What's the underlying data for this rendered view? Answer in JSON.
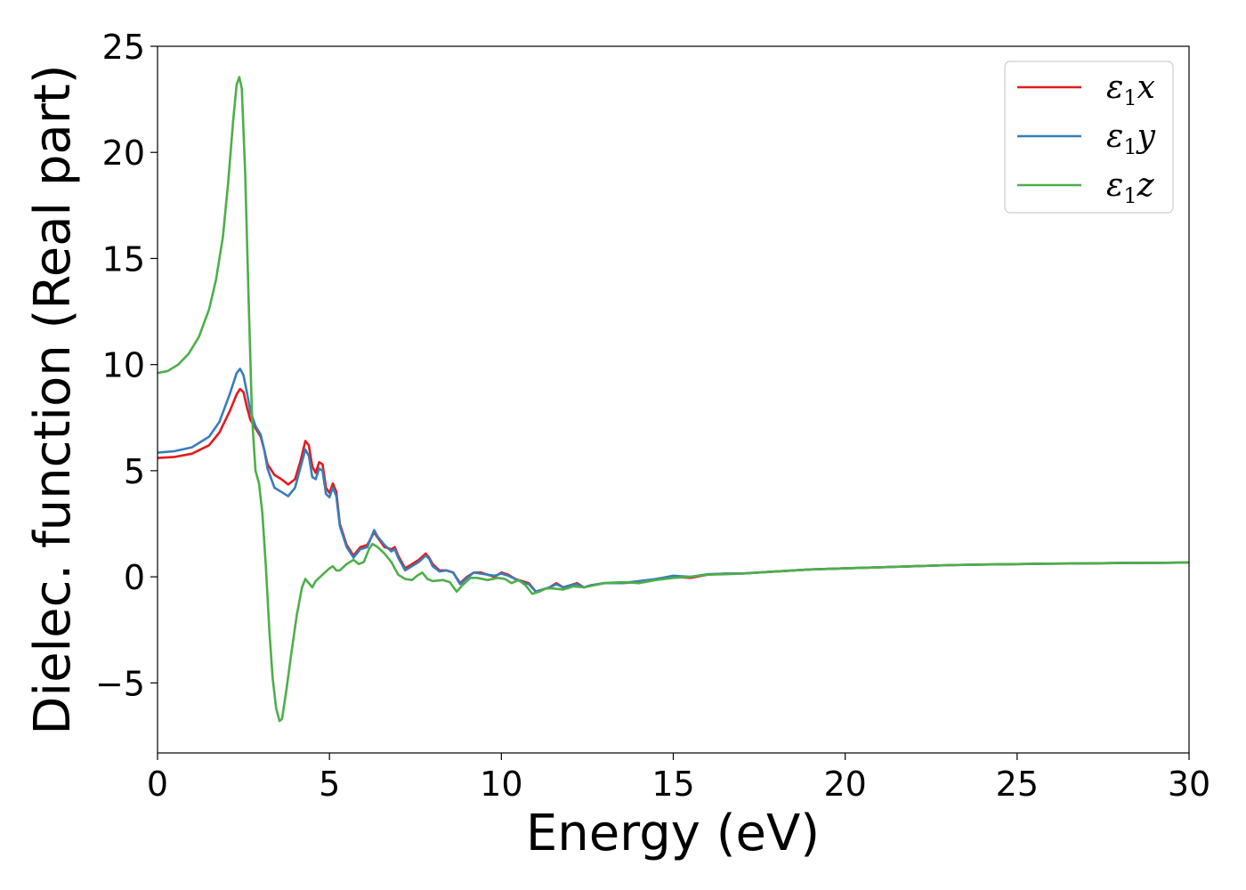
{
  "chart_data": {
    "type": "line",
    "xlabel": "Energy (eV)",
    "ylabel": "Dielec. function (Real part)",
    "xlim": [
      0,
      30
    ],
    "ylim": [
      -8.3,
      25
    ],
    "x_ticks": [
      0,
      5,
      10,
      15,
      20,
      25,
      30
    ],
    "y_ticks": [
      -5,
      0,
      5,
      10,
      15,
      20,
      25
    ],
    "x_tick_labels": [
      "0",
      "5",
      "10",
      "15",
      "20",
      "25",
      "30"
    ],
    "y_tick_labels": [
      "−5",
      "0",
      "5",
      "10",
      "15",
      "20",
      "25"
    ],
    "grid": false,
    "legend_position": "top-right",
    "series": [
      {
        "name": "ε1x",
        "label_main": "ε",
        "label_sub": "1",
        "label_tail": "x",
        "color": "#e41a1c",
        "points": [
          [
            0,
            5.6
          ],
          [
            0.5,
            5.65
          ],
          [
            1.0,
            5.8
          ],
          [
            1.5,
            6.2
          ],
          [
            1.8,
            6.8
          ],
          [
            2.1,
            7.8
          ],
          [
            2.3,
            8.6
          ],
          [
            2.4,
            8.85
          ],
          [
            2.5,
            8.7
          ],
          [
            2.6,
            8.0
          ],
          [
            2.7,
            7.4
          ],
          [
            2.85,
            7.0
          ],
          [
            3.0,
            6.6
          ],
          [
            3.1,
            6.0
          ],
          [
            3.2,
            5.3
          ],
          [
            3.4,
            4.8
          ],
          [
            3.6,
            4.6
          ],
          [
            3.8,
            4.35
          ],
          [
            4.0,
            4.6
          ],
          [
            4.15,
            5.4
          ],
          [
            4.3,
            6.4
          ],
          [
            4.4,
            6.2
          ],
          [
            4.5,
            5.2
          ],
          [
            4.6,
            4.9
          ],
          [
            4.7,
            5.4
          ],
          [
            4.8,
            5.3
          ],
          [
            4.9,
            4.2
          ],
          [
            5.0,
            3.95
          ],
          [
            5.1,
            4.4
          ],
          [
            5.2,
            4.0
          ],
          [
            5.3,
            2.5
          ],
          [
            5.5,
            1.5
          ],
          [
            5.7,
            1.0
          ],
          [
            5.9,
            1.4
          ],
          [
            6.1,
            1.5
          ],
          [
            6.3,
            2.1
          ],
          [
            6.4,
            1.85
          ],
          [
            6.6,
            1.4
          ],
          [
            6.8,
            1.3
          ],
          [
            6.9,
            1.4
          ],
          [
            7.0,
            1.0
          ],
          [
            7.2,
            0.4
          ],
          [
            7.4,
            0.6
          ],
          [
            7.6,
            0.8
          ],
          [
            7.8,
            1.1
          ],
          [
            7.9,
            0.9
          ],
          [
            8.0,
            0.6
          ],
          [
            8.2,
            0.3
          ],
          [
            8.4,
            0.3
          ],
          [
            8.6,
            0.2
          ],
          [
            8.8,
            -0.3
          ],
          [
            9.0,
            0.0
          ],
          [
            9.2,
            0.2
          ],
          [
            9.4,
            0.2
          ],
          [
            9.6,
            0.1
          ],
          [
            9.8,
            0.0
          ],
          [
            10.0,
            0.2
          ],
          [
            10.2,
            0.1
          ],
          [
            10.4,
            -0.1
          ],
          [
            10.6,
            -0.2
          ],
          [
            10.8,
            -0.3
          ],
          [
            11.0,
            -0.7
          ],
          [
            11.2,
            -0.6
          ],
          [
            11.4,
            -0.5
          ],
          [
            11.6,
            -0.3
          ],
          [
            11.8,
            -0.5
          ],
          [
            12.0,
            -0.4
          ],
          [
            12.2,
            -0.3
          ],
          [
            12.4,
            -0.5
          ],
          [
            12.6,
            -0.4
          ],
          [
            13.0,
            -0.3
          ],
          [
            13.5,
            -0.3
          ],
          [
            14.0,
            -0.25
          ],
          [
            14.5,
            -0.1
          ],
          [
            15.0,
            0.0
          ],
          [
            15.5,
            -0.05
          ],
          [
            16.0,
            0.1
          ],
          [
            16.5,
            0.15
          ],
          [
            17.0,
            0.15
          ],
          [
            18.0,
            0.25
          ],
          [
            19.0,
            0.35
          ],
          [
            20.0,
            0.4
          ],
          [
            21.0,
            0.45
          ],
          [
            22.0,
            0.5
          ],
          [
            23.0,
            0.55
          ],
          [
            24.0,
            0.58
          ],
          [
            25.0,
            0.6
          ],
          [
            26.0,
            0.62
          ],
          [
            27.0,
            0.63
          ],
          [
            28.0,
            0.65
          ],
          [
            29.0,
            0.66
          ],
          [
            30.0,
            0.67
          ]
        ]
      },
      {
        "name": "ε1y",
        "label_main": "ε",
        "label_sub": "1",
        "label_tail": "y",
        "color": "#377eb8",
        "points": [
          [
            0,
            5.85
          ],
          [
            0.5,
            5.92
          ],
          [
            1.0,
            6.1
          ],
          [
            1.5,
            6.6
          ],
          [
            1.8,
            7.3
          ],
          [
            2.1,
            8.6
          ],
          [
            2.3,
            9.6
          ],
          [
            2.4,
            9.8
          ],
          [
            2.5,
            9.5
          ],
          [
            2.6,
            8.7
          ],
          [
            2.7,
            7.8
          ],
          [
            2.85,
            7.1
          ],
          [
            3.0,
            6.7
          ],
          [
            3.1,
            6.0
          ],
          [
            3.2,
            5.1
          ],
          [
            3.4,
            4.2
          ],
          [
            3.6,
            4.0
          ],
          [
            3.8,
            3.8
          ],
          [
            4.0,
            4.2
          ],
          [
            4.15,
            5.1
          ],
          [
            4.3,
            6.0
          ],
          [
            4.4,
            5.7
          ],
          [
            4.5,
            4.7
          ],
          [
            4.6,
            4.6
          ],
          [
            4.7,
            5.1
          ],
          [
            4.8,
            5.0
          ],
          [
            4.9,
            3.9
          ],
          [
            5.0,
            3.75
          ],
          [
            5.1,
            4.2
          ],
          [
            5.2,
            3.8
          ],
          [
            5.3,
            2.4
          ],
          [
            5.5,
            1.4
          ],
          [
            5.7,
            0.9
          ],
          [
            5.9,
            1.3
          ],
          [
            6.1,
            1.4
          ],
          [
            6.3,
            2.2
          ],
          [
            6.4,
            1.9
          ],
          [
            6.6,
            1.5
          ],
          [
            6.8,
            1.2
          ],
          [
            6.9,
            1.3
          ],
          [
            7.0,
            0.9
          ],
          [
            7.2,
            0.3
          ],
          [
            7.4,
            0.5
          ],
          [
            7.6,
            0.7
          ],
          [
            7.8,
            1.0
          ],
          [
            7.9,
            0.85
          ],
          [
            8.0,
            0.5
          ],
          [
            8.2,
            0.25
          ],
          [
            8.4,
            0.3
          ],
          [
            8.6,
            0.2
          ],
          [
            8.8,
            -0.35
          ],
          [
            9.0,
            -0.05
          ],
          [
            9.2,
            0.2
          ],
          [
            9.4,
            0.15
          ],
          [
            9.6,
            0.1
          ],
          [
            9.8,
            0.05
          ],
          [
            10.0,
            0.15
          ],
          [
            10.2,
            0.05
          ],
          [
            10.4,
            -0.1
          ],
          [
            10.6,
            -0.25
          ],
          [
            10.8,
            -0.35
          ],
          [
            11.0,
            -0.7
          ],
          [
            11.2,
            -0.6
          ],
          [
            11.4,
            -0.5
          ],
          [
            11.6,
            -0.35
          ],
          [
            11.8,
            -0.5
          ],
          [
            12.0,
            -0.4
          ],
          [
            12.2,
            -0.35
          ],
          [
            12.4,
            -0.5
          ],
          [
            12.6,
            -0.4
          ],
          [
            13.0,
            -0.3
          ],
          [
            13.5,
            -0.3
          ],
          [
            14.0,
            -0.2
          ],
          [
            14.5,
            -0.1
          ],
          [
            15.0,
            0.05
          ],
          [
            15.5,
            0.0
          ],
          [
            16.0,
            0.12
          ],
          [
            16.5,
            0.15
          ],
          [
            17.0,
            0.16
          ],
          [
            18.0,
            0.25
          ],
          [
            19.0,
            0.35
          ],
          [
            20.0,
            0.4
          ],
          [
            21.0,
            0.45
          ],
          [
            22.0,
            0.5
          ],
          [
            23.0,
            0.55
          ],
          [
            24.0,
            0.58
          ],
          [
            25.0,
            0.6
          ],
          [
            26.0,
            0.62
          ],
          [
            27.0,
            0.63
          ],
          [
            28.0,
            0.65
          ],
          [
            29.0,
            0.66
          ],
          [
            30.0,
            0.67
          ]
        ]
      },
      {
        "name": "ε1z",
        "label_main": "ε",
        "label_sub": "1",
        "label_tail": "z",
        "color": "#4daf4a",
        "points": [
          [
            0,
            9.6
          ],
          [
            0.3,
            9.7
          ],
          [
            0.6,
            10.0
          ],
          [
            0.9,
            10.5
          ],
          [
            1.2,
            11.3
          ],
          [
            1.5,
            12.6
          ],
          [
            1.7,
            14.0
          ],
          [
            1.9,
            16.0
          ],
          [
            2.05,
            18.5
          ],
          [
            2.2,
            21.5
          ],
          [
            2.3,
            23.2
          ],
          [
            2.38,
            23.55
          ],
          [
            2.45,
            23.0
          ],
          [
            2.55,
            19.0
          ],
          [
            2.65,
            13.0
          ],
          [
            2.75,
            7.5
          ],
          [
            2.85,
            5.0
          ],
          [
            2.95,
            4.4
          ],
          [
            3.05,
            3.0
          ],
          [
            3.15,
            0.5
          ],
          [
            3.25,
            -2.5
          ],
          [
            3.35,
            -4.8
          ],
          [
            3.45,
            -6.2
          ],
          [
            3.55,
            -6.8
          ],
          [
            3.62,
            -6.7
          ],
          [
            3.75,
            -5.3
          ],
          [
            3.9,
            -3.5
          ],
          [
            4.05,
            -1.8
          ],
          [
            4.2,
            -0.5
          ],
          [
            4.3,
            -0.1
          ],
          [
            4.4,
            -0.3
          ],
          [
            4.5,
            -0.5
          ],
          [
            4.6,
            -0.2
          ],
          [
            4.8,
            0.1
          ],
          [
            5.0,
            0.4
          ],
          [
            5.1,
            0.5
          ],
          [
            5.2,
            0.3
          ],
          [
            5.3,
            0.3
          ],
          [
            5.5,
            0.6
          ],
          [
            5.7,
            0.8
          ],
          [
            5.85,
            0.6
          ],
          [
            6.0,
            0.7
          ],
          [
            6.15,
            1.3
          ],
          [
            6.25,
            1.55
          ],
          [
            6.4,
            1.4
          ],
          [
            6.6,
            1.1
          ],
          [
            6.8,
            0.7
          ],
          [
            7.0,
            0.1
          ],
          [
            7.2,
            -0.1
          ],
          [
            7.4,
            -0.15
          ],
          [
            7.55,
            0.05
          ],
          [
            7.7,
            0.2
          ],
          [
            7.85,
            -0.1
          ],
          [
            8.0,
            -0.2
          ],
          [
            8.3,
            -0.15
          ],
          [
            8.5,
            -0.25
          ],
          [
            8.7,
            -0.7
          ],
          [
            8.9,
            -0.35
          ],
          [
            9.1,
            -0.05
          ],
          [
            9.3,
            -0.05
          ],
          [
            9.6,
            -0.15
          ],
          [
            9.9,
            -0.05
          ],
          [
            10.1,
            -0.1
          ],
          [
            10.3,
            -0.3
          ],
          [
            10.5,
            -0.15
          ],
          [
            10.7,
            -0.4
          ],
          [
            10.9,
            -0.8
          ],
          [
            11.1,
            -0.7
          ],
          [
            11.3,
            -0.55
          ],
          [
            11.5,
            -0.55
          ],
          [
            11.8,
            -0.6
          ],
          [
            12.1,
            -0.45
          ],
          [
            12.4,
            -0.5
          ],
          [
            12.7,
            -0.4
          ],
          [
            13.0,
            -0.3
          ],
          [
            13.5,
            -0.25
          ],
          [
            14.0,
            -0.3
          ],
          [
            14.5,
            -0.15
          ],
          [
            15.0,
            -0.05
          ],
          [
            15.5,
            0.0
          ],
          [
            16.0,
            0.1
          ],
          [
            16.5,
            0.12
          ],
          [
            17.0,
            0.15
          ],
          [
            18.0,
            0.25
          ],
          [
            19.0,
            0.35
          ],
          [
            20.0,
            0.4
          ],
          [
            21.0,
            0.45
          ],
          [
            22.0,
            0.5
          ],
          [
            23.0,
            0.55
          ],
          [
            24.0,
            0.58
          ],
          [
            25.0,
            0.6
          ],
          [
            26.0,
            0.62
          ],
          [
            27.0,
            0.63
          ],
          [
            28.0,
            0.65
          ],
          [
            29.0,
            0.66
          ],
          [
            30.0,
            0.67
          ]
        ]
      }
    ]
  }
}
